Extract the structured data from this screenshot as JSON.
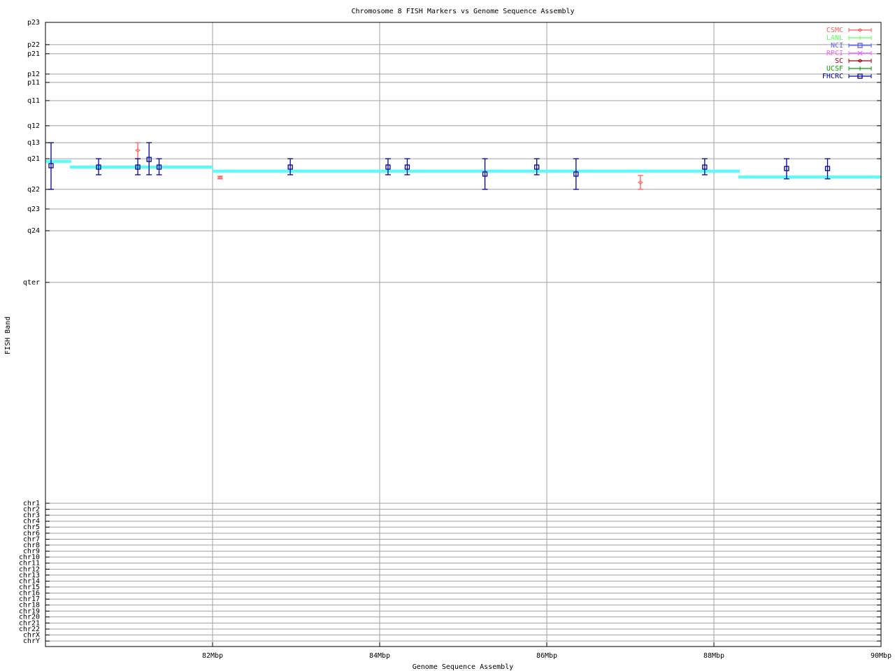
{
  "chart_data": {
    "type": "scatter",
    "title": "Chromosome 8 FISH Markers vs Genome Sequence Assembly",
    "xlabel": "Genome Sequence Assembly",
    "ylabel": "FISH Band",
    "xlim": [
      80,
      90
    ],
    "x_unit": "Mbp",
    "x_ticks": [
      {
        "value": 82,
        "label": "82Mbp"
      },
      {
        "value": 84,
        "label": "84Mbp"
      },
      {
        "value": 86,
        "label": "86Mbp"
      },
      {
        "value": 88,
        "label": "88Mbp"
      },
      {
        "value": 90,
        "label": "90Mbp"
      }
    ],
    "ylim": [
      0,
      350
    ],
    "y_inverted": true,
    "y_ticks": [
      {
        "value": 0,
        "label": "p23"
      },
      {
        "value": 12.5,
        "label": "p22"
      },
      {
        "value": 17.6,
        "label": "p21"
      },
      {
        "value": 29,
        "label": "p12"
      },
      {
        "value": 33.7,
        "label": "p11"
      },
      {
        "value": 43.9,
        "label": "q11"
      },
      {
        "value": 58,
        "label": "q12"
      },
      {
        "value": 67.5,
        "label": "q13"
      },
      {
        "value": 76.5,
        "label": "q21"
      },
      {
        "value": 93.7,
        "label": "q22"
      },
      {
        "value": 104.7,
        "label": "q23"
      },
      {
        "value": 116.9,
        "label": "q24"
      },
      {
        "value": 145.9,
        "label": "qter"
      },
      {
        "value": 269.8,
        "label": "chr1"
      },
      {
        "value": 273.2,
        "label": "chr2"
      },
      {
        "value": 276.5,
        "label": "chr3"
      },
      {
        "value": 279.9,
        "label": "chr4"
      },
      {
        "value": 283.2,
        "label": "chr5"
      },
      {
        "value": 286.6,
        "label": "chr6"
      },
      {
        "value": 290.0,
        "label": "chr7"
      },
      {
        "value": 293.3,
        "label": "chr8"
      },
      {
        "value": 296.7,
        "label": "chr9"
      },
      {
        "value": 300.0,
        "label": "chr10"
      },
      {
        "value": 303.4,
        "label": "chr11"
      },
      {
        "value": 306.8,
        "label": "chr12"
      },
      {
        "value": 310.1,
        "label": "chr13"
      },
      {
        "value": 313.5,
        "label": "chr14"
      },
      {
        "value": 316.8,
        "label": "chr15"
      },
      {
        "value": 320.2,
        "label": "chr16"
      },
      {
        "value": 323.6,
        "label": "chr17"
      },
      {
        "value": 326.9,
        "label": "chr18"
      },
      {
        "value": 330.3,
        "label": "chr19"
      },
      {
        "value": 333.6,
        "label": "chr20"
      },
      {
        "value": 337.0,
        "label": "chr21"
      },
      {
        "value": 340.4,
        "label": "chr22"
      },
      {
        "value": 343.7,
        "label": "chrX"
      },
      {
        "value": 347.1,
        "label": "chrY"
      }
    ],
    "grid": true,
    "legend_position": "top-right",
    "series": [
      {
        "name": "CSMC",
        "color": "#ff5c5c",
        "marker": "diamond",
        "points": [
          {
            "x": 81.105,
            "y": 71.8,
            "ylow": 67.5,
            "yhigh": 76.5
          },
          {
            "x": 82.09,
            "y": 87.1,
            "ylow": 86.3,
            "yhigh": 87.8
          },
          {
            "x": 87.12,
            "y": 89.8,
            "ylow": 85.9,
            "yhigh": 93.7
          }
        ]
      },
      {
        "name": "LANL",
        "color": "#5cff5c",
        "marker": "plus",
        "points": []
      },
      {
        "name": "NCI",
        "color": "#5c5cff",
        "marker": "square",
        "points": []
      },
      {
        "name": "RPCI",
        "color": "#ff5cff",
        "marker": "cross",
        "points": []
      },
      {
        "name": "SC",
        "color": "#a00000",
        "marker": "diamond",
        "points": []
      },
      {
        "name": "UCSF",
        "color": "#00a000",
        "marker": "plus",
        "points": []
      },
      {
        "name": "FHCRC",
        "color": "#0000a0",
        "marker": "square",
        "points": [
          {
            "x": 80.067,
            "y": 80.4,
            "ylow": 67.5,
            "yhigh": 93.7
          },
          {
            "x": 80.636,
            "y": 81.2,
            "ylow": 76.5,
            "yhigh": 85.5
          },
          {
            "x": 81.105,
            "y": 81.2,
            "ylow": 76.5,
            "yhigh": 85.5
          },
          {
            "x": 81.24,
            "y": 76.9,
            "ylow": 67.5,
            "yhigh": 85.5
          },
          {
            "x": 81.36,
            "y": 81.2,
            "ylow": 76.5,
            "yhigh": 85.5
          },
          {
            "x": 82.93,
            "y": 81.2,
            "ylow": 76.5,
            "yhigh": 85.5
          },
          {
            "x": 84.1,
            "y": 81.2,
            "ylow": 76.5,
            "yhigh": 85.5
          },
          {
            "x": 84.33,
            "y": 81.2,
            "ylow": 76.5,
            "yhigh": 85.5
          },
          {
            "x": 85.26,
            "y": 85.1,
            "ylow": 76.5,
            "yhigh": 93.7
          },
          {
            "x": 85.88,
            "y": 81.2,
            "ylow": 76.5,
            "yhigh": 85.5
          },
          {
            "x": 86.35,
            "y": 85.1,
            "ylow": 76.5,
            "yhigh": 93.7
          },
          {
            "x": 87.89,
            "y": 81.2,
            "ylow": 76.5,
            "yhigh": 85.5
          },
          {
            "x": 88.87,
            "y": 82.0,
            "ylow": 76.5,
            "yhigh": 87.8
          },
          {
            "x": 89.36,
            "y": 82.0,
            "ylow": 76.5,
            "yhigh": 87.8
          }
        ]
      }
    ],
    "assembly_segments": {
      "color": "#50ffff",
      "segments": [
        {
          "x1": 80.0,
          "x2": 80.31,
          "y": 78.0
        },
        {
          "x1": 80.29,
          "x2": 82.0,
          "y": 81.2
        },
        {
          "x1": 82.0,
          "x2": 88.31,
          "y": 83.5
        },
        {
          "x1": 88.29,
          "x2": 90.0,
          "y": 86.7
        }
      ]
    }
  }
}
